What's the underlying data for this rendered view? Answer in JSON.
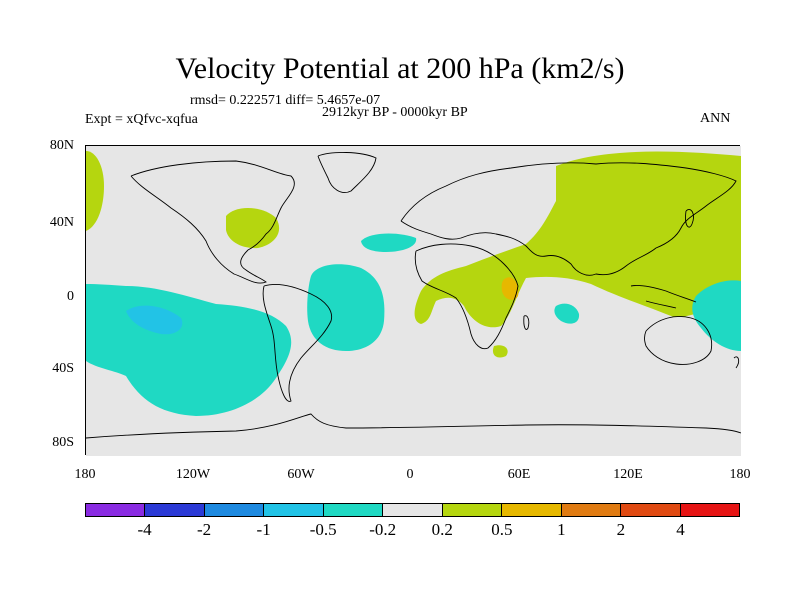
{
  "title": "Velocity Potential at 200 hPa (km2/s)",
  "stats": "rmsd= 0.222571 diff= 5.4657e-07",
  "experiment": "Expt = xQfvc-xqfua",
  "period": "2912kyr BP - 0000kyr BP",
  "season": "ANN",
  "y_ticks": [
    "80N",
    "40N",
    "0",
    "40S",
    "80S"
  ],
  "x_ticks": [
    "180",
    "120W",
    "60W",
    "0",
    "60E",
    "120E",
    "180"
  ],
  "legend": {
    "colors": [
      "#8a2be2",
      "#2b3ad6",
      "#1e8ae0",
      "#22c3e6",
      "#1fd9c3",
      "#e6e6e6",
      "#b5d60f",
      "#e6b800",
      "#e07b12",
      "#e04a12",
      "#e61414"
    ],
    "labels": [
      "-4",
      "-2",
      "-1",
      "-0.5",
      "-0.2",
      "0.2",
      "0.5",
      "1",
      "2",
      "4"
    ]
  },
  "colors": {
    "background_field": "#e6e6e6",
    "positive_low": "#b5d60f",
    "negative_low": "#1fd9c3",
    "negative_mid": "#22c3e6",
    "positive_mid": "#e6b800"
  }
}
